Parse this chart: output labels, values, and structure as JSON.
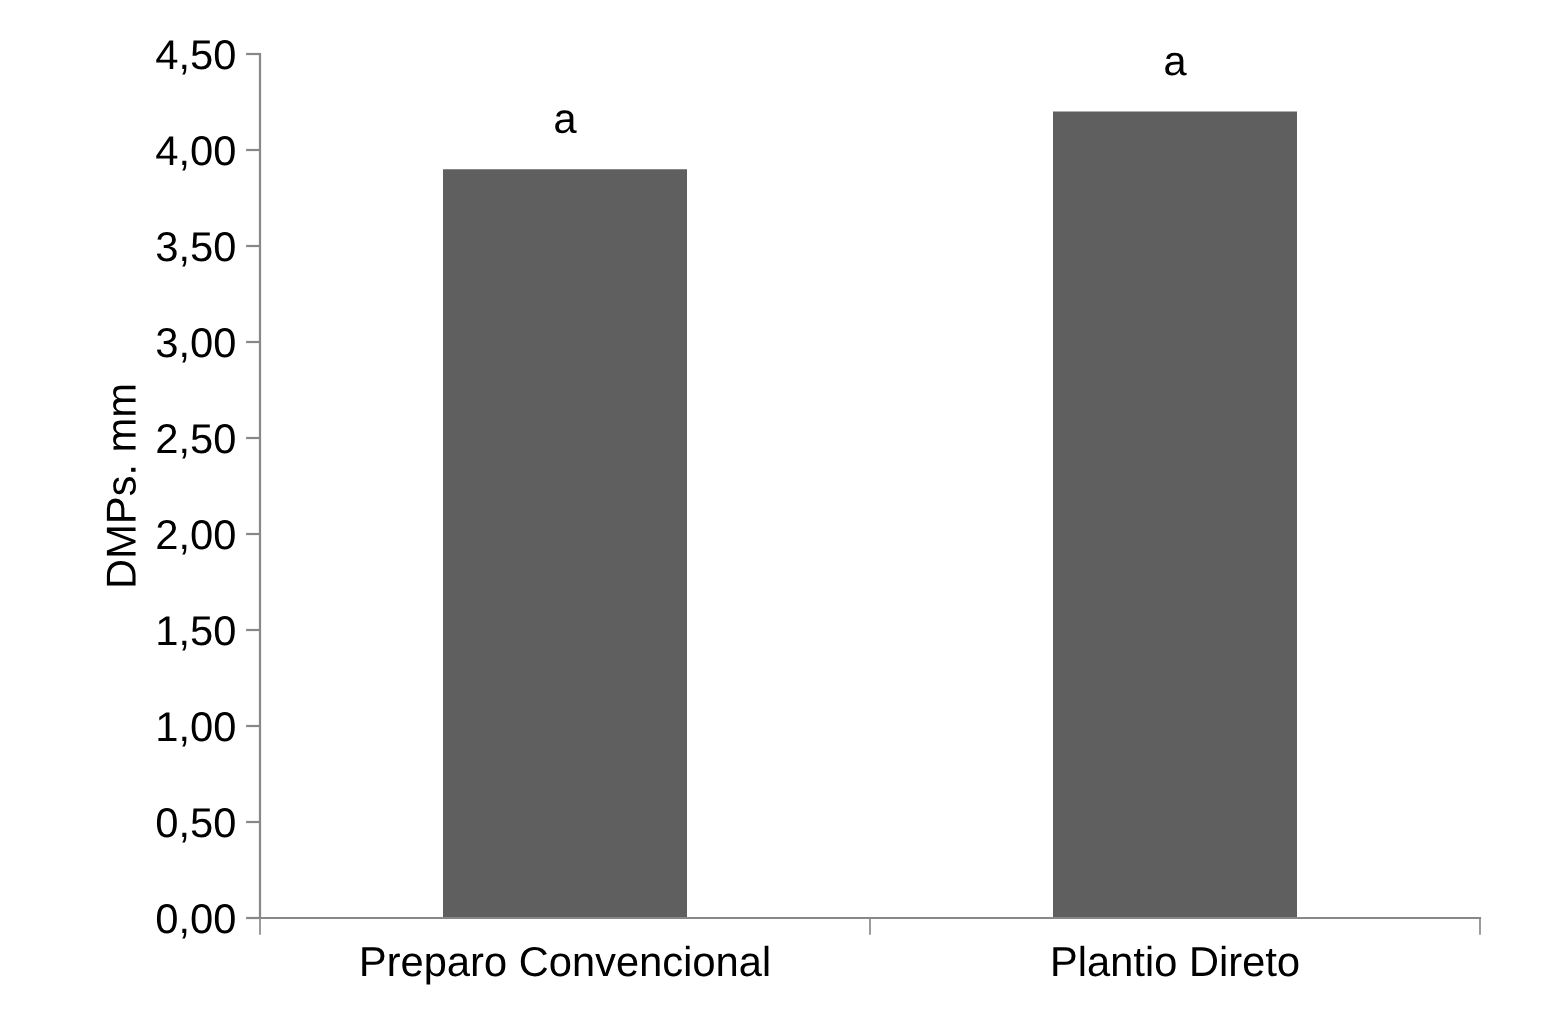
{
  "chart_data": {
    "type": "bar",
    "ylabel": "DMPs. mm",
    "categories": [
      "Preparo Convencional",
      "Plantio Direto"
    ],
    "values": [
      3.9,
      4.2
    ],
    "color": "#5f5f5f",
    "ylim": [
      0,
      4.5
    ],
    "yticks": [
      {
        "value": 0,
        "label": "0,00"
      },
      {
        "value": 0.5,
        "label": "0,50"
      },
      {
        "value": 1,
        "label": "1,00"
      },
      {
        "value": 1.5,
        "label": "1,50"
      },
      {
        "value": 2,
        "label": "2,00"
      },
      {
        "value": 2.5,
        "label": "2,50"
      },
      {
        "value": 3,
        "label": "3,00"
      },
      {
        "value": 3.5,
        "label": "3,50"
      },
      {
        "value": 4,
        "label": "4,00"
      },
      {
        "value": 4.5,
        "label": "4,50"
      }
    ],
    "annotations": [
      {
        "text": "a",
        "x": "Preparo Convencional",
        "y": 3.9
      },
      {
        "text": "a",
        "x": "Plantio Direto",
        "y": 4.2
      }
    ],
    "grid": false,
    "legend": false
  }
}
